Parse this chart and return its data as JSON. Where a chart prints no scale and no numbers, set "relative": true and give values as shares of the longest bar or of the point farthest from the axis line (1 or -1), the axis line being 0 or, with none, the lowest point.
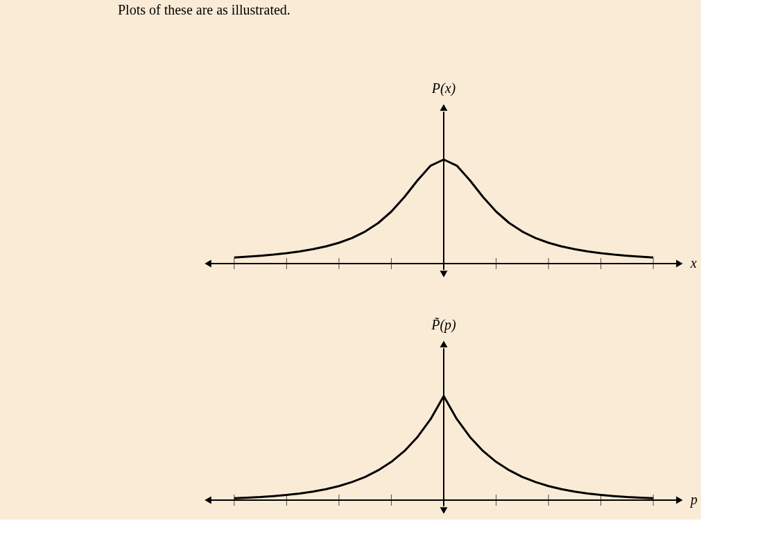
{
  "chart_data": [
    {
      "type": "line",
      "relative": true,
      "xlabel": "x",
      "ylabel": "P(x)",
      "annotations": [
        "Plots of these are as illustrated."
      ],
      "color": "#000000",
      "categories": [
        null,
        null,
        null,
        null,
        null,
        null,
        null,
        null,
        null,
        null,
        null,
        null,
        null,
        null,
        null,
        null,
        null,
        null,
        null,
        null,
        null,
        null,
        null,
        null,
        null,
        null,
        null,
        null,
        null,
        null,
        null,
        null,
        null
      ],
      "values": [
        0.059,
        0.066,
        0.075,
        0.086,
        0.1,
        0.117,
        0.138,
        0.165,
        0.2,
        0.246,
        0.308,
        0.39,
        0.5,
        0.64,
        0.8,
        0.941,
        1,
        0.941,
        0.8,
        0.64,
        0.5,
        0.39,
        0.308,
        0.246,
        0.2,
        0.165,
        0.138,
        0.117,
        0.1,
        0.086,
        0.075,
        0.066,
        0.059
      ]
    },
    {
      "type": "line",
      "relative": true,
      "xlabel": "p",
      "ylabel": "P̃(p)",
      "color": "#000000",
      "categories": [
        null,
        null,
        null,
        null,
        null,
        null,
        null,
        null,
        null,
        null,
        null,
        null,
        null,
        null,
        null,
        null,
        null,
        null,
        null,
        null,
        null,
        null,
        null,
        null,
        null,
        null,
        null,
        null,
        null,
        null,
        null,
        null,
        null
      ],
      "values": [
        0.018,
        0.024,
        0.03,
        0.039,
        0.05,
        0.064,
        0.082,
        0.105,
        0.135,
        0.174,
        0.223,
        0.287,
        0.368,
        0.472,
        0.607,
        0.779,
        1,
        0.779,
        0.607,
        0.472,
        0.368,
        0.287,
        0.223,
        0.174,
        0.135,
        0.105,
        0.082,
        0.064,
        0.05,
        0.039,
        0.03,
        0.024,
        0.018
      ]
    }
  ]
}
